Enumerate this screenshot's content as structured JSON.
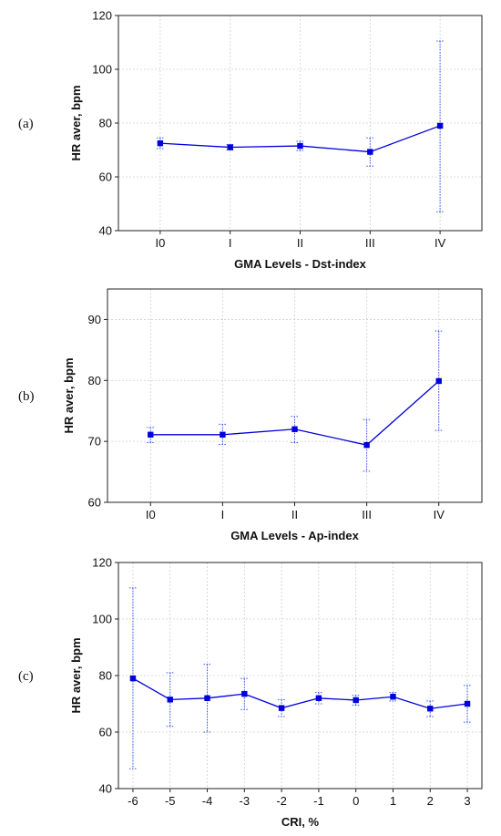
{
  "chart_data": [
    {
      "type": "line",
      "panel_label": "(a)",
      "xlabel": "GMA Levels - Dst-index",
      "ylabel": "HR aver, bpm",
      "ylim": [
        40,
        120
      ],
      "yticks": [
        40,
        60,
        80,
        100,
        120
      ],
      "categories": [
        "I0",
        "I",
        "II",
        "III",
        "IV"
      ],
      "grid": true,
      "series": [
        {
          "values": [
            72.5,
            71.0,
            71.5,
            69.3,
            79.0
          ],
          "lower": [
            70.5,
            70.0,
            69.8,
            64.0,
            47.0
          ],
          "upper": [
            74.5,
            72.0,
            73.2,
            74.5,
            110.5
          ]
        }
      ]
    },
    {
      "type": "line",
      "panel_label": "(b)",
      "xlabel": "GMA Levels - Ap-index",
      "ylabel": "HR aver, bpm",
      "ylim": [
        60,
        95
      ],
      "yticks": [
        60,
        70,
        80,
        90
      ],
      "categories": [
        "I0",
        "I",
        "II",
        "III",
        "IV"
      ],
      "grid": true,
      "series": [
        {
          "values": [
            71.1,
            71.1,
            72.0,
            69.4,
            79.9
          ],
          "lower": [
            69.8,
            69.5,
            69.8,
            65.1,
            71.8
          ],
          "upper": [
            72.3,
            72.8,
            74.1,
            73.6,
            88.1
          ]
        }
      ]
    },
    {
      "type": "line",
      "panel_label": "(c)",
      "xlabel": "CRI, %",
      "ylabel": "HR aver, bpm",
      "ylim": [
        40,
        120
      ],
      "yticks": [
        40,
        60,
        80,
        100,
        120
      ],
      "categories": [
        "-6",
        "-5",
        "-4",
        "-3",
        "-2",
        "-1",
        "0",
        "1",
        "2",
        "3"
      ],
      "grid": true,
      "series": [
        {
          "values": [
            79.0,
            71.5,
            72.0,
            73.5,
            68.5,
            72.0,
            71.3,
            72.5,
            68.3,
            70.0
          ],
          "lower": [
            47.0,
            62.0,
            60.0,
            68.0,
            65.5,
            70.0,
            69.5,
            71.0,
            65.5,
            63.5
          ],
          "upper": [
            111.0,
            81.0,
            84.0,
            79.0,
            71.5,
            74.0,
            73.0,
            74.0,
            71.0,
            76.5
          ]
        }
      ]
    }
  ]
}
